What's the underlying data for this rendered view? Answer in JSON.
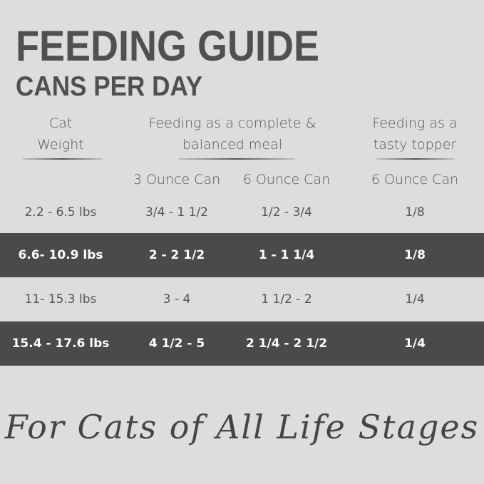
{
  "title": "FEEDING GUIDE",
  "subtitle": "CANS PER DAY",
  "headers": {
    "weight": [
      "Cat",
      "Weight"
    ],
    "complete": [
      "Feeding as a complete &",
      "balanced meal"
    ],
    "topper": [
      "Feeding as a",
      "tasty topper"
    ],
    "sub": [
      "3 Ounce Can",
      "6 Ounce Can",
      "6 Ounce Can"
    ]
  },
  "rows": [
    {
      "weight": "2.2 - 6.5 lbs",
      "oz3": "3/4 - 1 1/2",
      "oz6": "1/2 - 3/4",
      "topper": "1/8",
      "highlight": false
    },
    {
      "weight": "6.6- 10.9 lbs",
      "oz3": "2 - 2 1/2",
      "oz6": "1 - 1 1/4",
      "topper": "1/8",
      "highlight": true
    },
    {
      "weight": "11- 15.3 lbs",
      "oz3": "3 - 4",
      "oz6": "1 1/2 - 2",
      "topper": "1/4",
      "highlight": false
    },
    {
      "weight": "15.4 - 17.6 lbs",
      "oz3": "4 1/2 - 5",
      "oz6": "2 1/4 - 2 1/2",
      "topper": "1/4",
      "highlight": true
    }
  ],
  "tagline": "For Cats of All Life Stages",
  "colors": {
    "background": "#dcdddf",
    "band": "#4a4a4a",
    "text": "#555555"
  }
}
